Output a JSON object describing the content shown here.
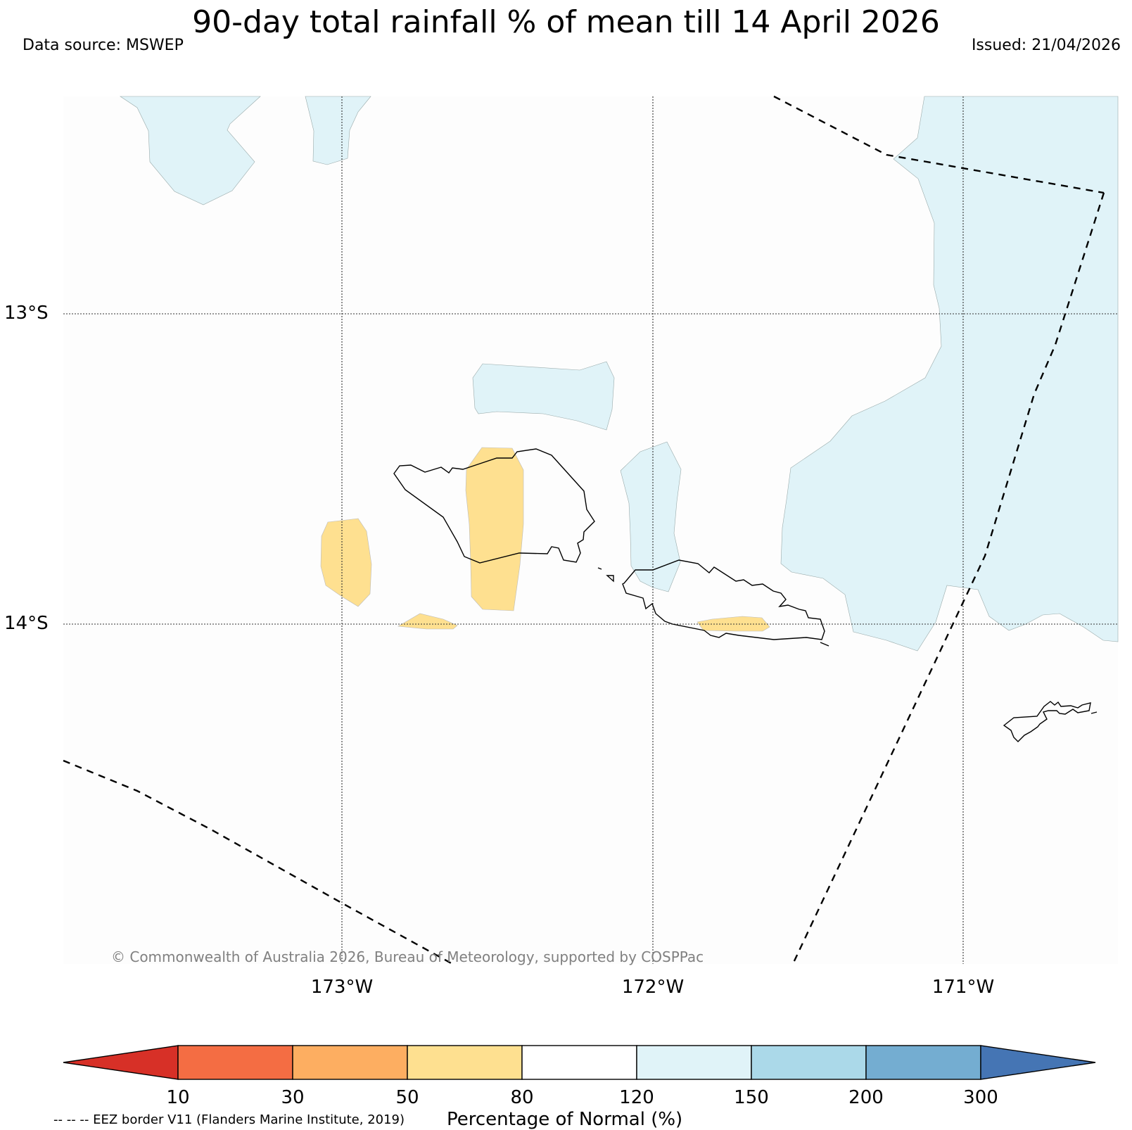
{
  "title": "90-day total rainfall % of mean till 14 April 2026",
  "data_source": "Data source: MSWEP",
  "issued": "Issued: 21/04/2026",
  "map": {
    "lat_labels": [
      "13°S",
      "14°S"
    ],
    "lon_labels": [
      "173°W",
      "172°W",
      "171°W"
    ],
    "copyright": "© Commonwealth of Australia 2026, Bureau of Meteorology, supported by COSPPac",
    "anomaly_colors": {
      "above_normal_120_150": "#e0f3f8",
      "below_normal_50_80": "#fee090"
    }
  },
  "colorbar": {
    "label": "Percentage of Normal (%)",
    "ticks": [
      "10",
      "30",
      "50",
      "80",
      "120",
      "150",
      "200",
      "300"
    ],
    "colors": [
      "#d73027",
      "#f46d43",
      "#fdae61",
      "#fee090",
      "#ffffff",
      "#e0f3f8",
      "#abd9e9",
      "#74add1",
      "#4575b4"
    ]
  },
  "eez_note": "-- -- -- EEZ border V11 (Flanders Marine Institute, 2019)"
}
